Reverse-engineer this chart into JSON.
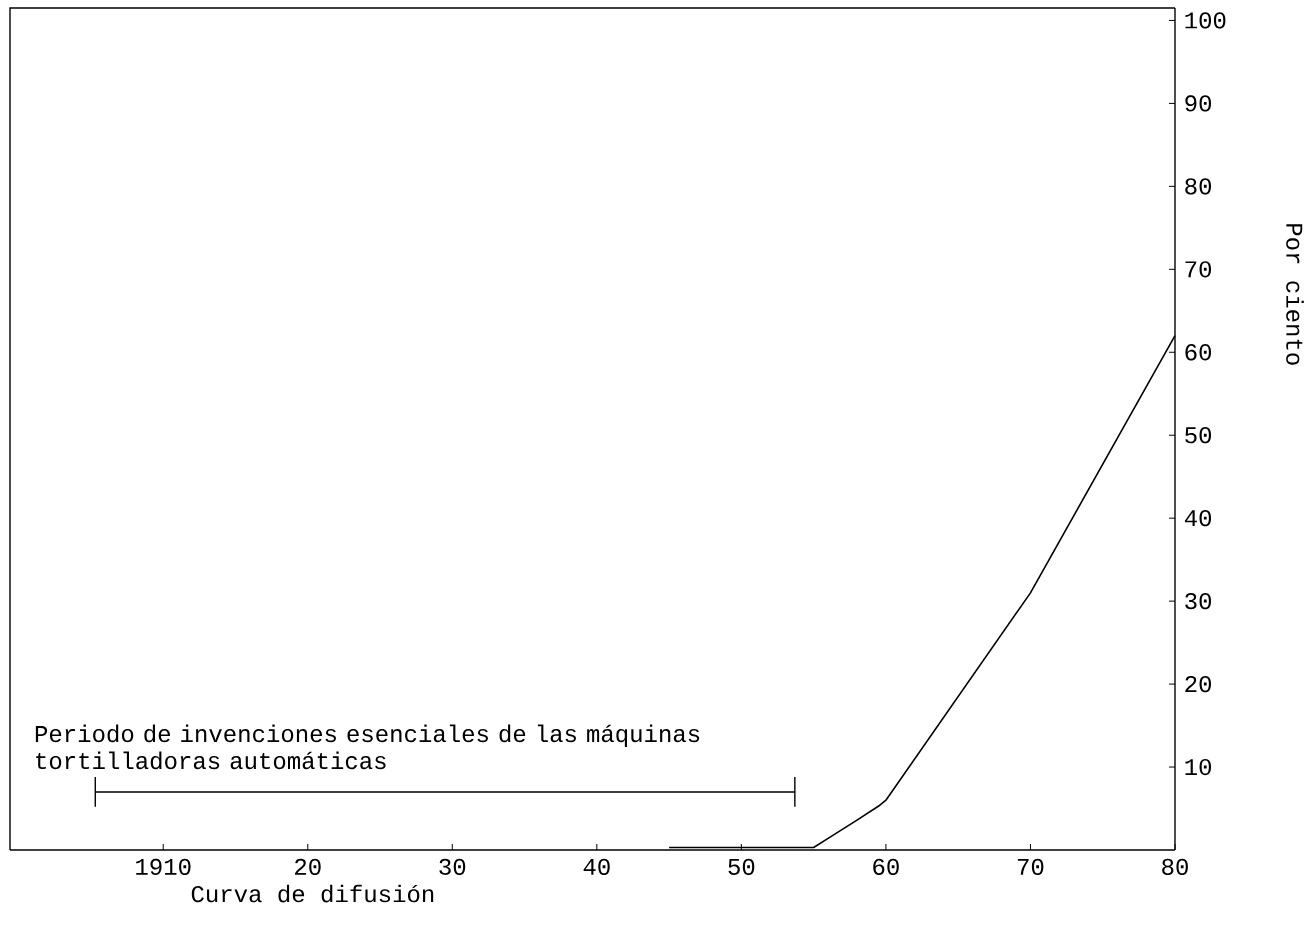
{
  "chart_data": {
    "type": "line",
    "xlabel": "Curva de difusión",
    "ylabel": "Por ciento",
    "xlim": [
      1899.4,
      1980
    ],
    "ylim": [
      0,
      101.5
    ],
    "xticks": [
      {
        "value": 1910,
        "label": "1910"
      },
      {
        "value": 1920,
        "label": "20"
      },
      {
        "value": 1930,
        "label": "30"
      },
      {
        "value": 1940,
        "label": "40"
      },
      {
        "value": 1950,
        "label": "50"
      },
      {
        "value": 1960,
        "label": "60"
      },
      {
        "value": 1970,
        "label": "70"
      },
      {
        "value": 1980,
        "label": "80"
      }
    ],
    "yticks": [
      10,
      20,
      30,
      40,
      50,
      60,
      70,
      80,
      90,
      100
    ],
    "series": [
      {
        "color": "#000000",
        "x": [
          1945,
          1955,
          1956,
          1958,
          1959.5,
          1960,
          1970,
          1980
        ],
        "values": [
          0.3,
          0.3,
          1.4,
          3.6,
          5.3,
          6,
          31,
          62
        ]
      },
      {
        "color": "#000000",
        "x": [
          1905.3,
          1953.7
        ],
        "values": [
          7,
          7
        ],
        "errors": [
          1.8,
          1.8
        ]
      }
    ],
    "annotations": [
      {
        "text": "Periodo de invenciones esenciales de las máquinas tortilladoras automáticas",
        "x": 1905.3,
        "y": 7
      }
    ],
    "grid": false,
    "legend": false
  }
}
